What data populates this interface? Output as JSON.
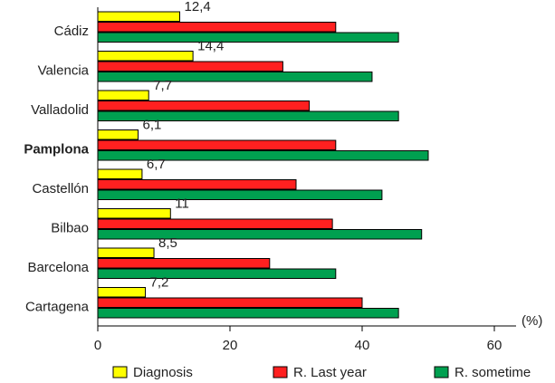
{
  "chart_data": {
    "type": "bar",
    "orientation": "horizontal",
    "categories": [
      "Cádiz",
      "Valencia",
      "Valladolid",
      "Pamplona",
      "Castellón",
      "Bilbao",
      "Barcelona",
      "Cartagena"
    ],
    "bold_categories": [
      "Pamplona"
    ],
    "series": [
      {
        "name": "Diagnosis",
        "color": "#ffff00",
        "values": [
          12.4,
          14.4,
          7.7,
          6.1,
          6.7,
          11,
          8.5,
          7.2
        ],
        "data_labels": [
          "12,4",
          "14,4",
          "7,7",
          "6,1",
          "6,7",
          "11",
          "8,5",
          "7,2"
        ]
      },
      {
        "name": "R. Last year",
        "color": "#ff2020",
        "values": [
          36,
          28,
          32,
          36,
          30,
          35.5,
          26,
          40
        ]
      },
      {
        "name": "R. sometime",
        "color": "#00a050",
        "values": [
          45.5,
          41.5,
          45.5,
          50,
          43,
          49,
          36,
          45.5
        ]
      }
    ],
    "x_ticks": [
      0,
      20,
      40,
      60
    ],
    "x_tick_labels": [
      "0",
      "20",
      "40",
      "60"
    ],
    "xlim": [
      0,
      63
    ],
    "x_unit": "(%)",
    "legend_position": "bottom"
  }
}
